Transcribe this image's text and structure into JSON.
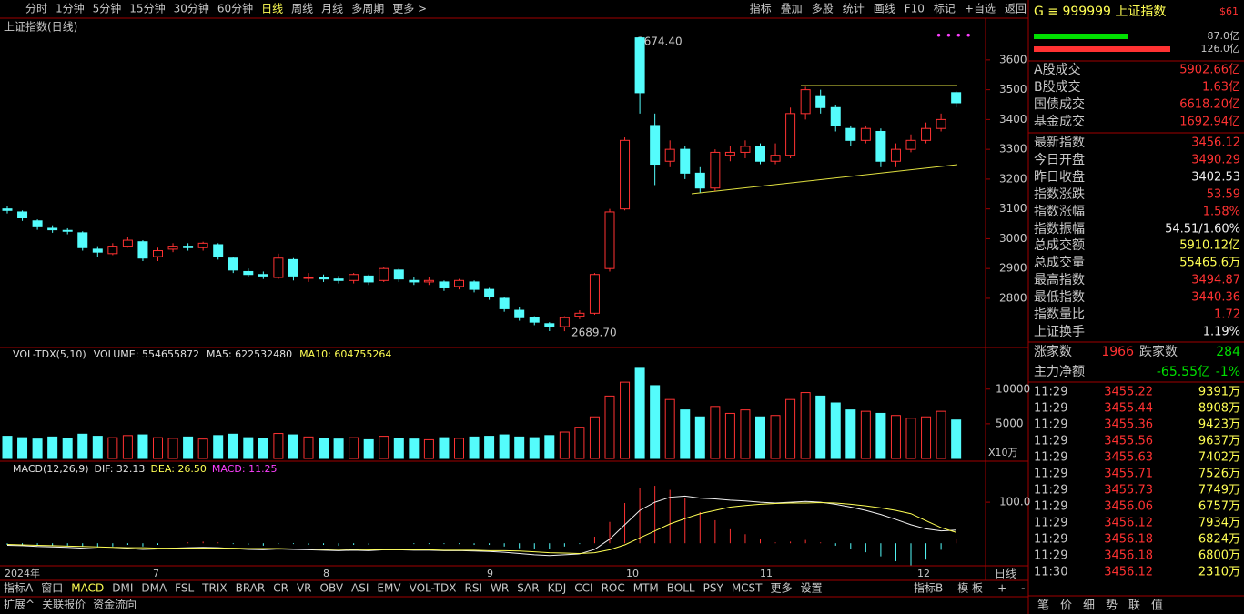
{
  "toolbar": {
    "left": [
      "分时",
      "1分钟",
      "5分钟",
      "15分钟",
      "30分钟",
      "60分钟",
      "日线",
      "周线",
      "月线",
      "多周期",
      "更多 >"
    ],
    "right": [
      "指标",
      "叠加",
      "多股",
      "统计",
      "画线",
      "F10",
      "标记",
      "+自选",
      "返回"
    ]
  },
  "price": {
    "title": "上证指数(日线)",
    "ylim": [
      2635,
      3740
    ],
    "yticks": [
      2800,
      2900,
      3000,
      3100,
      3200,
      3300,
      3400,
      3500,
      3600
    ],
    "annotations": [
      "3674.40",
      "2689.70"
    ],
    "open": [
      3100,
      3090,
      3060,
      3035,
      3028,
      3020,
      2965,
      2950,
      2975,
      2990,
      2940,
      2965,
      2975,
      2970,
      2980,
      2935,
      2890,
      2880,
      2870,
      2930,
      2870,
      2870,
      2865,
      2860,
      2875,
      2860,
      2895,
      2860,
      2855,
      2855,
      2840,
      2855,
      2830,
      2800,
      2760,
      2735,
      2715,
      2705,
      2740,
      2750,
      2900,
      3100,
      3674,
      3380,
      3260,
      3300,
      3220,
      3170,
      3280,
      3290,
      3310,
      3260,
      3280,
      3420,
      3480,
      3440,
      3370,
      3330,
      3360,
      3260,
      3300,
      3330,
      3370,
      3490.29
    ],
    "close": [
      3095,
      3070,
      3040,
      3030,
      3025,
      2970,
      2955,
      2975,
      2995,
      2935,
      2960,
      2975,
      2970,
      2985,
      2940,
      2895,
      2880,
      2875,
      2935,
      2875,
      2870,
      2865,
      2860,
      2880,
      2855,
      2900,
      2865,
      2855,
      2860,
      2835,
      2860,
      2830,
      2805,
      2765,
      2735,
      2720,
      2705,
      2735,
      2750,
      2880,
      3090,
      3330,
      3490,
      3250,
      3300,
      3220,
      3170,
      3290,
      3290,
      3310,
      3260,
      3280,
      3420,
      3500,
      3440,
      3380,
      3330,
      3370,
      3260,
      3300,
      3330,
      3370,
      3400,
      3456.12
    ],
    "high": [
      3110,
      3095,
      3065,
      3045,
      3035,
      3025,
      2975,
      2985,
      3005,
      2995,
      2970,
      2985,
      2985,
      2990,
      2985,
      2940,
      2900,
      2890,
      2950,
      2935,
      2885,
      2880,
      2875,
      2885,
      2880,
      2905,
      2900,
      2870,
      2870,
      2860,
      2865,
      2860,
      2835,
      2805,
      2770,
      2740,
      2720,
      2740,
      2760,
      2885,
      3100,
      3340,
      3674.4,
      3420,
      3330,
      3310,
      3240,
      3300,
      3310,
      3330,
      3320,
      3320,
      3440,
      3510,
      3500,
      3450,
      3380,
      3380,
      3370,
      3320,
      3350,
      3390,
      3420,
      3494.87
    ],
    "low": [
      3085,
      3060,
      3030,
      3020,
      3015,
      2960,
      2940,
      2945,
      2970,
      2925,
      2925,
      2955,
      2960,
      2960,
      2930,
      2885,
      2870,
      2865,
      2865,
      2860,
      2855,
      2855,
      2850,
      2850,
      2845,
      2855,
      2855,
      2845,
      2845,
      2825,
      2830,
      2820,
      2795,
      2755,
      2725,
      2710,
      2690,
      2689.7,
      2730,
      2745,
      2890,
      3095,
      3420,
      3180,
      3240,
      3200,
      3155,
      3160,
      3260,
      3270,
      3250,
      3250,
      3270,
      3400,
      3420,
      3360,
      3310,
      3320,
      3240,
      3240,
      3290,
      3320,
      3360,
      3440.36
    ]
  },
  "volume": {
    "header": [
      "VOL-TDX(5,10)",
      "VOLUME: 554655872",
      "MA5: 622532480",
      "MA10: 604755264"
    ],
    "unit": "X10万",
    "ylim": [
      0,
      16000
    ],
    "yticks": [
      5000,
      10000
    ],
    "values": [
      3200,
      3000,
      2800,
      3100,
      2900,
      3500,
      3200,
      3000,
      3300,
      3400,
      3000,
      2900,
      3100,
      2800,
      3300,
      3500,
      3000,
      2900,
      3600,
      3400,
      3100,
      2900,
      2800,
      3000,
      2700,
      3200,
      2900,
      2800,
      2700,
      3000,
      2900,
      3100,
      3200,
      3400,
      3100,
      3000,
      3300,
      3800,
      4500,
      6000,
      9000,
      11000,
      13000,
      10500,
      8500,
      7000,
      6000,
      7500,
      6500,
      7000,
      6000,
      6200,
      8500,
      9500,
      9000,
      8000,
      7000,
      6800,
      6500,
      6200,
      5800,
      6000,
      6800,
      5546.56
    ]
  },
  "macd": {
    "header": [
      "MACD(12,26,9)",
      "DIF: 32.13",
      "DEA: 26.50",
      "MACD: 11.25"
    ],
    "ylim": [
      -55,
      200
    ],
    "yticks": [
      {
        "value": 100,
        "label": "100.0"
      }
    ],
    "dif": [
      -5,
      -6,
      -8,
      -9,
      -10,
      -12,
      -14,
      -14,
      -13,
      -15,
      -14,
      -12,
      -11,
      -10,
      -11,
      -13,
      -15,
      -16,
      -14,
      -15,
      -16,
      -17,
      -18,
      -17,
      -18,
      -16,
      -16,
      -17,
      -17,
      -18,
      -18,
      -19,
      -20,
      -22,
      -25,
      -28,
      -30,
      -28,
      -26,
      -15,
      10,
      45,
      80,
      100,
      112,
      115,
      110,
      108,
      105,
      103,
      100,
      98,
      100,
      102,
      100,
      95,
      88,
      80,
      70,
      58,
      45,
      35,
      30,
      32.13
    ],
    "dea": [
      -3,
      -4,
      -5,
      -6,
      -7,
      -8,
      -9,
      -10,
      -11,
      -11,
      -12,
      -12,
      -12,
      -12,
      -12,
      -12,
      -13,
      -13,
      -13,
      -14,
      -14,
      -15,
      -15,
      -15,
      -16,
      -16,
      -16,
      -16,
      -16,
      -17,
      -17,
      -17,
      -18,
      -18,
      -19,
      -21,
      -23,
      -24,
      -25,
      -23,
      -16,
      -4,
      13,
      30,
      47,
      60,
      72,
      80,
      88,
      92,
      95,
      97,
      98,
      98,
      99,
      98,
      95,
      91,
      86,
      80,
      72,
      55,
      38,
      26.5
    ],
    "bars": [
      -4,
      -4,
      -6,
      -6,
      -6,
      -8,
      -10,
      -8,
      -4,
      -8,
      -4,
      0,
      2,
      4,
      2,
      -2,
      -4,
      -6,
      -2,
      -2,
      -4,
      -4,
      -6,
      -4,
      -4,
      0,
      0,
      -2,
      -2,
      -2,
      -2,
      -4,
      -4,
      -8,
      -12,
      -14,
      -14,
      -8,
      -2,
      16,
      52,
      98,
      134,
      140,
      130,
      110,
      76,
      56,
      34,
      22,
      10,
      2,
      4,
      8,
      2,
      -6,
      -14,
      -22,
      -32,
      -44,
      -54,
      -40,
      -16,
      11.25
    ]
  },
  "xaxis": {
    "labels": [
      "2024年",
      "7",
      "8",
      "9",
      "10",
      "11",
      "12"
    ],
    "period": "日线"
  },
  "tabs": {
    "left": [
      "指标A",
      "窗口",
      "MACD",
      "DMI",
      "DMA",
      "FSL",
      "TRIX",
      "BRAR",
      "CR",
      "VR",
      "OBV",
      "ASI",
      "EMV",
      "VOL-TDX",
      "RSI",
      "WR",
      "SAR",
      "KDJ",
      "CCI",
      "ROC",
      "MTM",
      "BOLL",
      "PSY",
      "MCST",
      "更多",
      "设置"
    ],
    "right": [
      "指标B",
      "模 板",
      "+",
      "-"
    ],
    "bottom": [
      "扩展^",
      "关联报价",
      "资金流向"
    ]
  },
  "panel": {
    "code": "G ≡ 999999 上证指数",
    "flag": "$61",
    "flow": [
      {
        "value": 87.0,
        "label": "87.0亿"
      },
      {
        "value": 126.0,
        "label": "126.0亿"
      }
    ],
    "rows": [
      [
        "A股成交",
        "5902.66亿"
      ],
      [
        "B股成交",
        "1.63亿"
      ],
      [
        "国债成交",
        "6618.20亿"
      ],
      [
        "基金成交",
        "1692.94亿"
      ],
      [
        "最新指数",
        "3456.12"
      ],
      [
        "今日开盘",
        "3490.29"
      ],
      [
        "昨日收盘",
        "3402.53"
      ],
      [
        "指数涨跌",
        "53.59"
      ],
      [
        "指数涨幅",
        "1.58%"
      ],
      [
        "指数振幅",
        "54.51/1.60%"
      ],
      [
        "总成交额",
        "5910.12亿"
      ],
      [
        "总成交量",
        "55465.6万"
      ],
      [
        "最高指数",
        "3494.87"
      ],
      [
        "最低指数",
        "3440.36"
      ],
      [
        "指数量比",
        "1.72"
      ],
      [
        "上证换手",
        "1.19%"
      ]
    ],
    "breadth": [
      "涨家数",
      "1966",
      "跌家数",
      "284"
    ],
    "net": [
      "主力净额",
      "-65.55亿",
      "-1%"
    ],
    "trades": [
      [
        "11:29",
        "3455.22",
        "9391万"
      ],
      [
        "11:29",
        "3455.44",
        "8908万"
      ],
      [
        "11:29",
        "3455.36",
        "9423万"
      ],
      [
        "11:29",
        "3455.56",
        "9637万"
      ],
      [
        "11:29",
        "3455.63",
        "7402万"
      ],
      [
        "11:29",
        "3455.71",
        "7526万"
      ],
      [
        "11:29",
        "3455.73",
        "7749万"
      ],
      [
        "11:29",
        "3456.06",
        "6757万"
      ],
      [
        "11:29",
        "3456.12",
        "7934万"
      ],
      [
        "11:29",
        "3456.18",
        "6824万"
      ],
      [
        "11:29",
        "3456.18",
        "6800万"
      ],
      [
        "11:30",
        "3456.12",
        "2310万"
      ]
    ],
    "tabs": [
      "笔",
      "价",
      "细",
      "势",
      "联",
      "值"
    ]
  }
}
